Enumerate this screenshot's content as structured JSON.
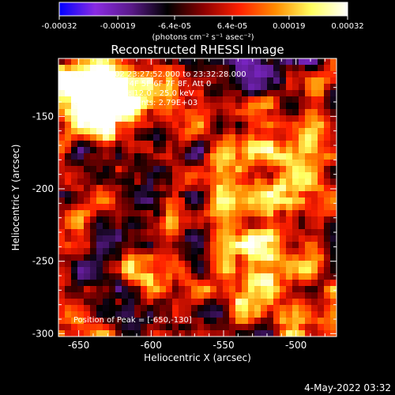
{
  "colorbar": {
    "tick_labels": [
      "-0.00032",
      "-0.00019",
      "-6.4e-05",
      "6.4e-05",
      "0.00019",
      "0.00032"
    ],
    "unit_label": "(photons cm⁻² s⁻¹ asec⁻²)",
    "colors": [
      "#0000ff",
      "#8a2be2",
      "#5a1a8a",
      "#000000",
      "#8b0000",
      "#ff2000",
      "#ff8c00",
      "#ffff60",
      "#ffffff"
    ]
  },
  "chart_data": {
    "type": "heatmap",
    "title": "Reconstructed RHESSI Image",
    "xlabel": "Heliocentric X (arcsec)",
    "ylabel": "Heliocentric Y (arcsec)",
    "xlim": [
      -664,
      -472
    ],
    "ylim": [
      -302,
      -110
    ],
    "x_ticks": [
      -650,
      -600,
      -550,
      -500
    ],
    "y_ticks": [
      -300,
      -250,
      -200,
      -150
    ],
    "x_tick_labels": [
      "-650",
      "-600",
      "-550",
      "-500"
    ],
    "y_tick_labels": [
      "-300",
      "-250",
      "-200",
      "-150"
    ],
    "value_range": [
      -0.00032,
      0.00032
    ],
    "peak": [
      -650,
      -130
    ],
    "annotations": [
      "10-Dec-2002 23:27:52.000 to 23:32:28.000",
      "Detectors: 3F 4F 5F 6F 7F 8F, Att 0",
      "Energy Range: 12.0 - 25.0 keV",
      "Clean    Total counts: 2.79E+03"
    ],
    "peak_label": "Position of Peak = [-650,-130]"
  },
  "footer": {
    "timestamp": "4-May-2022 03:32"
  }
}
